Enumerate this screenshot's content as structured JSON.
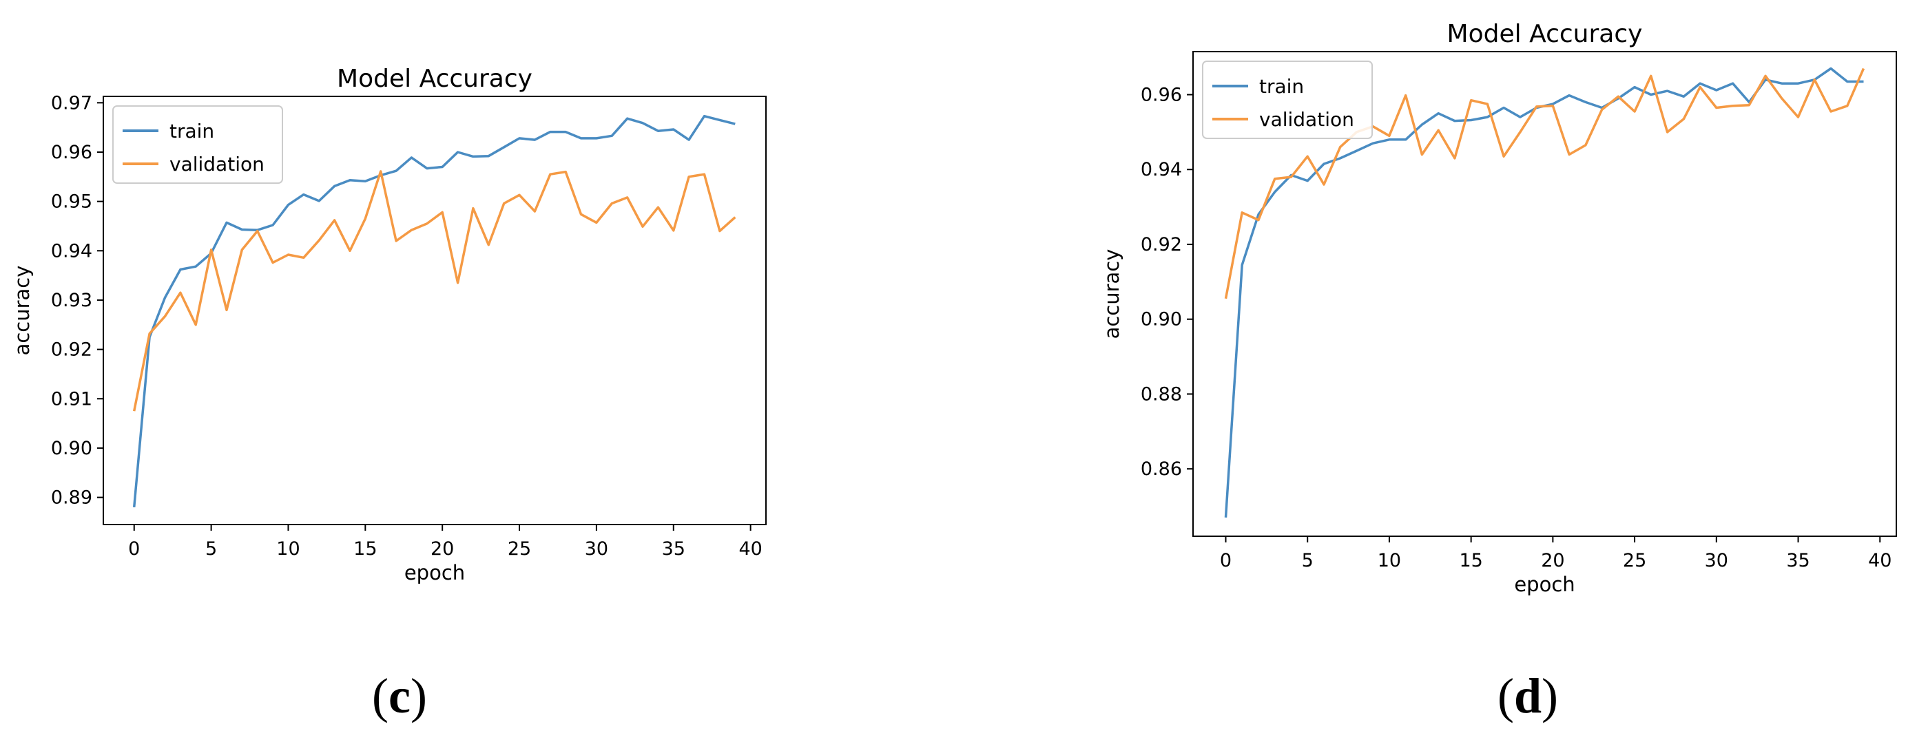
{
  "chart_data": [
    {
      "type": "line",
      "title": "Model Accuracy",
      "xlabel": "epoch",
      "ylabel": "accuracy",
      "xlim": [
        -2,
        41
      ],
      "ylim": [
        0.8845,
        0.9713
      ],
      "xticks": [
        0,
        5,
        10,
        15,
        20,
        25,
        30,
        35,
        40
      ],
      "yticks": [
        0.89,
        0.9,
        0.91,
        0.92,
        0.93,
        0.94,
        0.95,
        0.96,
        0.97
      ],
      "ytick_labels": [
        "0.89",
        "0.90",
        "0.91",
        "0.92",
        "0.93",
        "0.94",
        "0.95",
        "0.96",
        "0.97"
      ],
      "grid": false,
      "legend": "top-left",
      "series": [
        {
          "name": "train",
          "color": "#4a8cc2",
          "x": [
            0,
            1,
            2,
            3,
            4,
            5,
            6,
            7,
            8,
            9,
            10,
            11,
            12,
            13,
            14,
            15,
            16,
            17,
            18,
            19,
            20,
            21,
            22,
            23,
            24,
            25,
            26,
            27,
            28,
            29,
            30,
            31,
            32,
            33,
            34,
            35,
            36,
            37,
            38,
            39
          ],
          "values": [
            0.888,
            0.9225,
            0.9305,
            0.9362,
            0.9368,
            0.9395,
            0.9457,
            0.9443,
            0.9442,
            0.9452,
            0.9493,
            0.9514,
            0.9501,
            0.9531,
            0.9543,
            0.9541,
            0.9553,
            0.9562,
            0.9589,
            0.9567,
            0.957,
            0.96,
            0.9591,
            0.9592,
            0.961,
            0.9628,
            0.9625,
            0.9641,
            0.9641,
            0.9628,
            0.9628,
            0.9633,
            0.9668,
            0.9659,
            0.9643,
            0.9646,
            0.9625,
            0.9673,
            0.9665,
            0.9657
          ]
        },
        {
          "name": "validation",
          "color": "#f59a44",
          "x": [
            0,
            1,
            2,
            3,
            4,
            5,
            6,
            7,
            8,
            9,
            10,
            11,
            12,
            13,
            14,
            15,
            16,
            17,
            18,
            19,
            20,
            21,
            22,
            23,
            24,
            25,
            26,
            27,
            28,
            29,
            30,
            31,
            32,
            33,
            34,
            35,
            36,
            37,
            38,
            39
          ],
          "values": [
            0.9075,
            0.9232,
            0.9267,
            0.9315,
            0.925,
            0.9402,
            0.928,
            0.9402,
            0.944,
            0.9376,
            0.9392,
            0.9386,
            0.9421,
            0.9462,
            0.94,
            0.9465,
            0.9561,
            0.942,
            0.9442,
            0.9455,
            0.9478,
            0.9335,
            0.9486,
            0.9412,
            0.9496,
            0.9513,
            0.948,
            0.9555,
            0.956,
            0.9474,
            0.9457,
            0.9496,
            0.9508,
            0.9449,
            0.9488,
            0.9441,
            0.955,
            0.9555,
            0.944,
            0.9468
          ]
        }
      ],
      "panel_label": "(c)"
    },
    {
      "type": "line",
      "title": "Model Accuracy",
      "xlabel": "epoch",
      "ylabel": "accuracy",
      "xlim": [
        -2,
        41
      ],
      "ylim": [
        0.842,
        0.9715
      ],
      "xticks": [
        0,
        5,
        10,
        15,
        20,
        25,
        30,
        35,
        40
      ],
      "yticks": [
        0.86,
        0.88,
        0.9,
        0.92,
        0.94,
        0.96
      ],
      "ytick_labels": [
        "0.86",
        "0.88",
        "0.90",
        "0.92",
        "0.94",
        "0.96"
      ],
      "grid": false,
      "legend": "top-left",
      "series": [
        {
          "name": "train",
          "color": "#4a8cc2",
          "x": [
            0,
            1,
            2,
            3,
            4,
            5,
            6,
            7,
            8,
            9,
            10,
            11,
            12,
            13,
            14,
            15,
            16,
            17,
            18,
            19,
            20,
            21,
            22,
            23,
            24,
            25,
            26,
            27,
            28,
            29,
            30,
            31,
            32,
            33,
            34,
            35,
            36,
            37,
            38,
            39
          ],
          "values": [
            0.847,
            0.9145,
            0.928,
            0.934,
            0.9385,
            0.937,
            0.9415,
            0.943,
            0.945,
            0.947,
            0.948,
            0.948,
            0.952,
            0.955,
            0.953,
            0.9532,
            0.954,
            0.9565,
            0.954,
            0.9565,
            0.9575,
            0.9598,
            0.958,
            0.9565,
            0.959,
            0.962,
            0.96,
            0.961,
            0.9595,
            0.963,
            0.9612,
            0.963,
            0.958,
            0.964,
            0.963,
            0.963,
            0.964,
            0.967,
            0.9635,
            0.9635
          ]
        },
        {
          "name": "validation",
          "color": "#f59a44",
          "x": [
            0,
            1,
            2,
            3,
            4,
            5,
            6,
            7,
            8,
            9,
            10,
            11,
            12,
            13,
            14,
            15,
            16,
            17,
            18,
            19,
            20,
            21,
            22,
            23,
            24,
            25,
            26,
            27,
            28,
            29,
            30,
            31,
            32,
            33,
            34,
            35,
            36,
            37,
            38,
            39
          ],
          "values": [
            0.9055,
            0.9285,
            0.9265,
            0.9375,
            0.938,
            0.9435,
            0.936,
            0.946,
            0.95,
            0.9515,
            0.949,
            0.9598,
            0.944,
            0.9505,
            0.943,
            0.9585,
            0.9575,
            0.9435,
            0.95,
            0.9568,
            0.957,
            0.944,
            0.9465,
            0.956,
            0.9595,
            0.9555,
            0.965,
            0.95,
            0.9535,
            0.962,
            0.9565,
            0.957,
            0.9572,
            0.965,
            0.959,
            0.954,
            0.964,
            0.9555,
            0.957,
            0.967
          ]
        }
      ],
      "panel_label": "(d)"
    }
  ]
}
